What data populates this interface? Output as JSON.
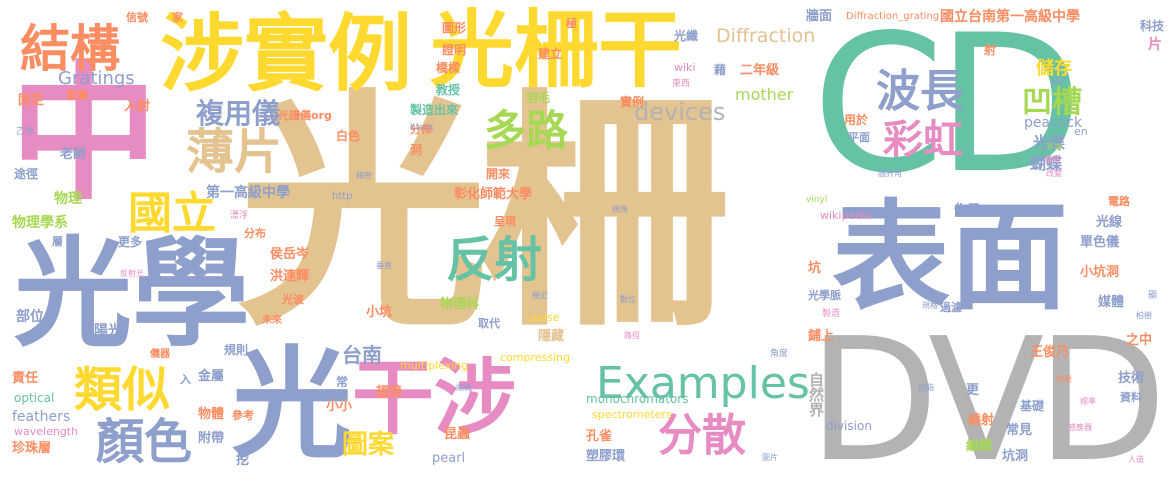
{
  "palette": {
    "tan": "#e3c38f",
    "blue": "#8e9fcc",
    "pink": "#e78cc2",
    "green": "#66c2a5",
    "yellow": "#ffd92f",
    "lime": "#a6d854",
    "orange": "#fc8d62",
    "gray": "#b3b3b3"
  },
  "words": [
    "光柵",
    "CD",
    "DVD",
    "表面",
    "光學",
    "中",
    "光",
    "涉實例",
    "光柵干",
    "干涉",
    "結構",
    "類似",
    "顏色",
    "薄片",
    "國立",
    "反射",
    "Examples",
    "分散",
    "多路",
    "波長",
    "彩虹",
    "凹槽",
    "複用儀",
    "devices",
    "Diffraction",
    "Gratings",
    "圖案",
    "台南",
    "光碟",
    "peacock",
    "蝴蝶",
    "儲存",
    "mother",
    "自然界",
    "第一高級中學",
    "國立台南第一高級中學",
    "彰化師範大學",
    "物理學系",
    "老師",
    "物理",
    "侯岳岑",
    "洪連輝",
    "光波",
    "陽光",
    "部位",
    "責任",
    "optical",
    "feathers",
    "wavelength",
    "珍珠層",
    "物體",
    "附帶",
    "參考",
    "挖",
    "金屬",
    "翅膀",
    "昆蟲",
    "pearl",
    "孔雀",
    "塑膠環",
    "monochromators",
    "spectrometers",
    "multiplexing",
    "compressing",
    "pulse",
    "取代",
    "隱藏",
    "物理科",
    "小坑",
    "小小",
    "division",
    "wikipedia",
    "作用",
    "單色儀",
    "光線",
    "小坑洞",
    "媒體",
    "王俊乃",
    "之中",
    "技術",
    "資料",
    "基礎",
    "常見",
    "坑洞",
    "編輯",
    "繞射",
    "更",
    "鋪上",
    "光學脈",
    "坑",
    "過濾",
    "Diffraction_grating",
    "牆面",
    "二年級",
    "羽毛",
    "實例",
    "教授",
    "製造出來",
    "洞",
    "分佈",
    "開來",
    "呈現",
    "http",
    "光譜儀org",
    "白色",
    "入射",
    "固定",
    "事實",
    "衝擊",
    "信號",
    "家",
    "圖形",
    "證明",
    "橋樑",
    "建立",
    "光纖",
    "藉",
    "極",
    "wiki",
    "東西",
    "用於",
    "平面",
    "射",
    "科技",
    "片",
    "en",
    "black",
    "乙烯",
    "途徑",
    "層",
    "更多",
    "分布",
    "未來",
    "規則",
    "常",
    "入",
    "儀器",
    "反射光",
    "漂浮",
    "精密",
    "vinyl",
    "電路",
    "角度",
    "效果",
    "樹脂",
    "標準",
    "感應器",
    "人造",
    "圖片",
    "製造",
    "顯",
    "柏樹",
    "規格",
    "暗片",
    "平常",
    "圖像",
    "改變",
    "臨界角",
    "視角",
    "數位",
    "路徑",
    "幾近",
    "垂直",
    "縮機"
  ]
}
